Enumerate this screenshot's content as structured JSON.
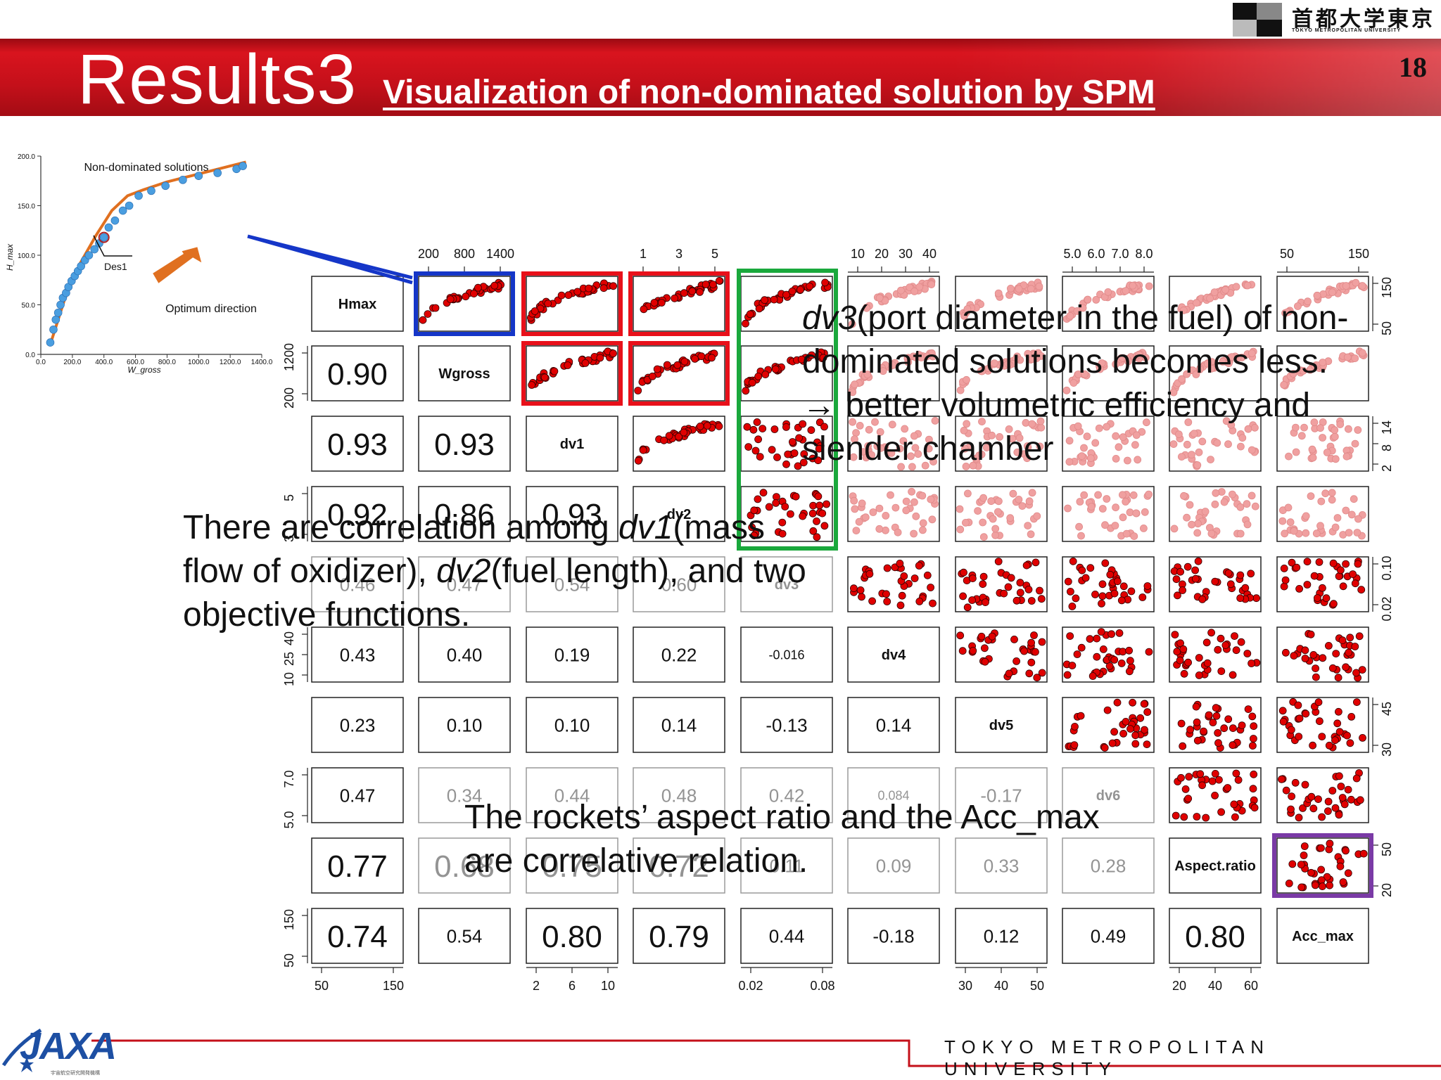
{
  "header": {
    "title": "Results3",
    "subtitle": "Visualization of non-dominated solution by SPM",
    "page_number": "18",
    "university_logo_cn": "首都大学東京",
    "university_logo_en": "TOKYO METROPOLITAN UNIVERSITY"
  },
  "footer": {
    "university": "TOKYO METROPOLITAN UNIVERSITY",
    "jaxa_logo": "JAXA",
    "jaxa_sub": "宇宙航空研究開発機構"
  },
  "colors": {
    "banner_red": "#c4101a",
    "point_red": "#e00000",
    "point_pink": "#f0a0a0",
    "box_blue": "#1536c8",
    "box_red": "#e8101a",
    "box_green": "#1aa83c",
    "box_purple": "#7a3aa6",
    "front_orange": "#e07020",
    "front_points": "#4a9ee0"
  },
  "notes": {
    "n1_italic": "dv3",
    "n1_line1_rest": "(port diameter in the fuel) of non-",
    "n1_line2": "dominated solutions becomes less.",
    "n1_line3": "→ better volumetric efficiency and",
    "n1_line4": "slender chamber",
    "n2_line1_pre": "There are correlation among ",
    "n2_line1_italic": "dv1",
    "n2_line1_post": "(mass",
    "n2_line2_pre": "flow of oxidizer), ",
    "n2_line2_italic": "dv2",
    "n2_line2_post": "(fuel length), and two",
    "n2_line3": "objective functions.",
    "n3_line1": "The rockets’ aspect ratio and the Acc_max",
    "n3_line2": "are correlative relation."
  },
  "chart_data": [
    {
      "type": "line",
      "title": "Non-dominated solutions",
      "xlabel": "W_gross",
      "ylabel": "H_max",
      "xlim": [
        0,
        1400
      ],
      "ylim": [
        0,
        200
      ],
      "x_ticks": [
        "0.0",
        "200.0",
        "400.0",
        "600.0",
        "800.0",
        "1000.0",
        "1200.0",
        "1400.0"
      ],
      "y_ticks": [
        "0.0",
        "50.0",
        "100.0",
        "150.0",
        "200.0"
      ],
      "annotations": [
        "Des1",
        "Optimum direction"
      ],
      "series": [
        {
          "type": "scatter",
          "x": [
            60,
            80,
            95,
            110,
            125,
            140,
            160,
            175,
            195,
            215,
            235,
            255,
            280,
            305,
            340,
            370,
            400,
            430,
            470,
            520,
            560,
            620,
            700,
            790,
            900,
            1000,
            1120,
            1240,
            1280
          ],
          "y": [
            12,
            25,
            35,
            42,
            50,
            57,
            62,
            68,
            74,
            79,
            84,
            89,
            95,
            100,
            106,
            112,
            118,
            128,
            135,
            145,
            150,
            160,
            165,
            170,
            176,
            180,
            183,
            187,
            190
          ]
        },
        {
          "type": "line",
          "x": [
            60,
            150,
            250,
            350,
            450,
            550,
            650,
            800,
            1000,
            1200,
            1300
          ],
          "y": [
            10,
            55,
            92,
            120,
            145,
            160,
            166,
            174,
            182,
            190,
            194
          ]
        }
      ]
    },
    {
      "type": "scatter-matrix",
      "variables": [
        "Hmax",
        "Wgross",
        "dv1",
        "dv2",
        "dv3",
        "dv4",
        "dv5",
        "dv6",
        "Aspect.ratio",
        "Acc_max"
      ],
      "top_ticks": [
        [],
        [
          "200",
          "800",
          "1400"
        ],
        [],
        [
          "1",
          "3",
          "5"
        ],
        [],
        [
          "10",
          "20",
          "30",
          "40"
        ],
        [],
        [
          "5.0",
          "6.0",
          "7.0",
          "8.0"
        ],
        [],
        [
          "50",
          "150"
        ]
      ],
      "bottom_ticks": [
        [
          "50",
          "150"
        ],
        [],
        [
          "2",
          "6",
          "10"
        ],
        [],
        [
          "0.02",
          "0.08"
        ],
        [],
        [
          "30",
          "40",
          "50"
        ],
        [],
        [
          "20",
          "40",
          "60"
        ],
        []
      ],
      "left_ticks": [
        [],
        [
          "200",
          "1200"
        ],
        [],
        [
          "3",
          "5"
        ],
        [],
        [
          "10",
          "25",
          "40"
        ],
        [],
        [
          "5.0",
          "7.0"
        ],
        [],
        [
          "50",
          "150"
        ]
      ],
      "right_ticks": [
        [
          "50",
          "150"
        ],
        [],
        [
          "2",
          "8",
          "14"
        ],
        [],
        [
          "0.02",
          "0.10"
        ],
        [],
        [
          "30",
          "45"
        ],
        [],
        [
          "20",
          "50"
        ],
        []
      ],
      "correlations": [
        {
          "row": 1,
          "col": 0,
          "value": "0.90",
          "size": "large"
        },
        {
          "row": 2,
          "col": 0,
          "value": "0.93",
          "size": "large"
        },
        {
          "row": 2,
          "col": 1,
          "value": "0.93",
          "size": "large"
        },
        {
          "row": 3,
          "col": 0,
          "value": "0.92",
          "size": "large"
        },
        {
          "row": 3,
          "col": 1,
          "value": "0.86",
          "size": "large"
        },
        {
          "row": 3,
          "col": 2,
          "value": "0.93",
          "size": "large"
        },
        {
          "row": 4,
          "col": 0,
          "value": "0.46",
          "size": "medium"
        },
        {
          "row": 4,
          "col": 1,
          "value": "0.47",
          "size": "medium"
        },
        {
          "row": 4,
          "col": 2,
          "value": "0.54",
          "size": "medium"
        },
        {
          "row": 4,
          "col": 3,
          "value": "0.60",
          "size": "medium"
        },
        {
          "row": 5,
          "col": 0,
          "value": "0.43",
          "size": "medium"
        },
        {
          "row": 5,
          "col": 1,
          "value": "0.40",
          "size": "medium"
        },
        {
          "row": 5,
          "col": 2,
          "value": "0.19",
          "size": "medium"
        },
        {
          "row": 5,
          "col": 3,
          "value": "0.22",
          "size": "medium"
        },
        {
          "row": 5,
          "col": 4,
          "value": "-0.016",
          "size": "small"
        },
        {
          "row": 6,
          "col": 0,
          "value": "0.23",
          "size": "medium"
        },
        {
          "row": 6,
          "col": 1,
          "value": "0.10",
          "size": "medium"
        },
        {
          "row": 6,
          "col": 2,
          "value": "0.10",
          "size": "medium"
        },
        {
          "row": 6,
          "col": 3,
          "value": "0.14",
          "size": "medium"
        },
        {
          "row": 6,
          "col": 4,
          "value": "-0.13",
          "size": "medium"
        },
        {
          "row": 6,
          "col": 5,
          "value": "0.14",
          "size": "medium"
        },
        {
          "row": 7,
          "col": 0,
          "value": "0.47",
          "size": "medium"
        },
        {
          "row": 7,
          "col": 1,
          "value": "0.34",
          "size": "medium"
        },
        {
          "row": 7,
          "col": 2,
          "value": "0.44",
          "size": "medium"
        },
        {
          "row": 7,
          "col": 3,
          "value": "0.48",
          "size": "medium"
        },
        {
          "row": 7,
          "col": 4,
          "value": "0.42",
          "size": "medium"
        },
        {
          "row": 7,
          "col": 5,
          "value": "0.084",
          "size": "small"
        },
        {
          "row": 7,
          "col": 6,
          "value": "-0.17",
          "size": "medium"
        },
        {
          "row": 8,
          "col": 0,
          "value": "0.77",
          "size": "large"
        },
        {
          "row": 8,
          "col": 1,
          "value": "0.68",
          "size": "large"
        },
        {
          "row": 8,
          "col": 2,
          "value": "0.75",
          "size": "large"
        },
        {
          "row": 8,
          "col": 3,
          "value": "0.72",
          "size": "large"
        },
        {
          "row": 8,
          "col": 4,
          "value": "0.11",
          "size": "medium"
        },
        {
          "row": 8,
          "col": 5,
          "value": "0.09",
          "size": "medium"
        },
        {
          "row": 8,
          "col": 6,
          "value": "0.33",
          "size": "medium"
        },
        {
          "row": 8,
          "col": 7,
          "value": "0.28",
          "size": "medium"
        },
        {
          "row": 9,
          "col": 0,
          "value": "0.74",
          "size": "large"
        },
        {
          "row": 9,
          "col": 1,
          "value": "0.54",
          "size": "medium"
        },
        {
          "row": 9,
          "col": 2,
          "value": "0.80",
          "size": "large"
        },
        {
          "row": 9,
          "col": 3,
          "value": "0.79",
          "size": "large"
        },
        {
          "row": 9,
          "col": 4,
          "value": "0.44",
          "size": "medium"
        },
        {
          "row": 9,
          "col": 5,
          "value": "-0.18",
          "size": "medium"
        },
        {
          "row": 9,
          "col": 6,
          "value": "0.12",
          "size": "medium"
        },
        {
          "row": 9,
          "col": 7,
          "value": "0.49",
          "size": "medium"
        },
        {
          "row": 9,
          "col": 8,
          "value": "0.80",
          "size": "large"
        }
      ],
      "faded_cells": [
        [
          4,
          0
        ],
        [
          4,
          1
        ],
        [
          4,
          2
        ],
        [
          4,
          3
        ],
        [
          4,
          4
        ],
        [
          7,
          1
        ],
        [
          7,
          2
        ],
        [
          7,
          3
        ],
        [
          7,
          4
        ],
        [
          7,
          5
        ],
        [
          7,
          6
        ],
        [
          7,
          7
        ],
        [
          8,
          1
        ],
        [
          8,
          2
        ],
        [
          8,
          3
        ],
        [
          8,
          4
        ],
        [
          8,
          5
        ],
        [
          8,
          6
        ],
        [
          8,
          7
        ]
      ],
      "highlight_boxes": [
        {
          "color": "blue",
          "cells": [
            [
              0,
              1
            ]
          ]
        },
        {
          "color": "red",
          "cells": [
            [
              0,
              2
            ],
            [
              0,
              3
            ],
            [
              1,
              2
            ],
            [
              1,
              3
            ]
          ]
        },
        {
          "color": "green",
          "cells": [
            [
              0,
              4
            ],
            [
              1,
              4
            ],
            [
              2,
              4
            ],
            [
              3,
              4
            ]
          ]
        },
        {
          "color": "purple",
          "cells": [
            [
              8,
              9
            ]
          ]
        }
      ]
    }
  ]
}
